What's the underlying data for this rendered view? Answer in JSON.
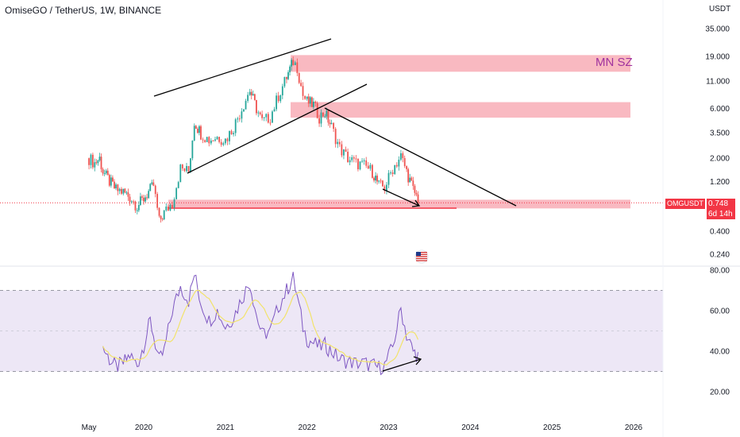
{
  "header": {
    "title": "OmiseGO / TetherUS, 1W, BINANCE",
    "unit": "USDT"
  },
  "zones": {
    "mn_sz_label": "MN SZ"
  },
  "price_tag": {
    "symbol": "OMGUSDT",
    "price": "0.748",
    "countdown": "6d 14h"
  },
  "colors": {
    "up": "#26a69a",
    "down": "#ef5350",
    "zone": "#f7a1ac",
    "rsi": "#7e57c2",
    "rsi_ma": "#f2e36b",
    "rsi_band": "#ede7f6"
  },
  "chart_data": [
    {
      "type": "candlestick",
      "scale": "log",
      "ylim": [
        0.2,
        40
      ],
      "y_ticks": [
        "35.000",
        "19.000",
        "11.000",
        "6.000",
        "3.500",
        "2.000",
        "1.200",
        "0.400",
        "0.240"
      ],
      "x_ticks": [
        "May",
        "2020",
        "2021",
        "2022",
        "2023",
        "2024",
        "2025",
        "2026"
      ],
      "series": [
        {
          "name": "OMGUSDT",
          "values": [
            [
              2019.33,
              2.0
            ],
            [
              2019.4,
              1.8
            ],
            [
              2019.46,
              2.0
            ],
            [
              2019.5,
              1.5
            ],
            [
              2019.58,
              1.2
            ],
            [
              2019.66,
              1.0
            ],
            [
              2019.75,
              0.95
            ],
            [
              2019.83,
              0.85
            ],
            [
              2019.92,
              0.7
            ],
            [
              2020.0,
              0.82
            ],
            [
              2020.08,
              1.0
            ],
            [
              2020.12,
              1.1
            ],
            [
              2020.19,
              0.5
            ],
            [
              2020.25,
              0.6
            ],
            [
              2020.35,
              0.75
            ],
            [
              2020.45,
              1.6
            ],
            [
              2020.55,
              1.5
            ],
            [
              2020.62,
              4.5
            ],
            [
              2020.7,
              3.5
            ],
            [
              2020.8,
              3.0
            ],
            [
              2020.9,
              3.2
            ],
            [
              2021.0,
              3.0
            ],
            [
              2021.1,
              4.0
            ],
            [
              2021.2,
              6.0
            ],
            [
              2021.3,
              9.0
            ],
            [
              2021.38,
              6.0
            ],
            [
              2021.45,
              4.5
            ],
            [
              2021.55,
              5.0
            ],
            [
              2021.65,
              8.0
            ],
            [
              2021.75,
              12.0
            ],
            [
              2021.83,
              17.0
            ],
            [
              2021.88,
              15.0
            ],
            [
              2021.95,
              8.0
            ],
            [
              2022.0,
              7.0
            ],
            [
              2022.08,
              6.5
            ],
            [
              2022.15,
              5.0
            ],
            [
              2022.22,
              5.5
            ],
            [
              2022.3,
              4.0
            ],
            [
              2022.4,
              2.5
            ],
            [
              2022.5,
              2.0
            ],
            [
              2022.6,
              1.8
            ],
            [
              2022.7,
              1.7
            ],
            [
              2022.8,
              1.5
            ],
            [
              2022.88,
              1.1
            ],
            [
              2022.95,
              1.05
            ],
            [
              2023.05,
              1.6
            ],
            [
              2023.15,
              2.1
            ],
            [
              2023.22,
              1.5
            ],
            [
              2023.3,
              1.0
            ],
            [
              2023.38,
              0.75
            ]
          ]
        }
      ],
      "zones": [
        {
          "from": 13.5,
          "to": 19.5,
          "label": "MN SZ"
        },
        {
          "from": 4.9,
          "to": 6.9,
          "label": ""
        },
        {
          "from": 0.66,
          "to": 0.8,
          "label": ""
        }
      ],
      "last_price": 0.748
    },
    {
      "type": "line",
      "ylim": [
        20,
        80
      ],
      "y_ticks": [
        "80.00",
        "60.00",
        "40.00",
        "20.00"
      ],
      "band": [
        30,
        70
      ],
      "series": [
        {
          "name": "",
          "values": [
            [
              2019.5,
              42
            ],
            [
              2019.58,
              36
            ],
            [
              2019.66,
              32
            ],
            [
              2019.75,
              34
            ],
            [
              2019.83,
              38
            ],
            [
              2019.92,
              33
            ],
            [
              2020.0,
              43
            ],
            [
              2020.08,
              55
            ],
            [
              2020.12,
              48
            ],
            [
              2020.19,
              35
            ],
            [
              2020.25,
              40
            ],
            [
              2020.35,
              60
            ],
            [
              2020.45,
              72
            ],
            [
              2020.55,
              65
            ],
            [
              2020.62,
              78
            ],
            [
              2020.7,
              64
            ],
            [
              2020.8,
              55
            ],
            [
              2020.9,
              60
            ],
            [
              2021.0,
              52
            ],
            [
              2021.1,
              57
            ],
            [
              2021.2,
              66
            ],
            [
              2021.3,
              74
            ],
            [
              2021.38,
              58
            ],
            [
              2021.45,
              48
            ],
            [
              2021.55,
              50
            ],
            [
              2021.65,
              62
            ],
            [
              2021.75,
              70
            ],
            [
              2021.83,
              76
            ],
            [
              2021.88,
              67
            ],
            [
              2021.95,
              52
            ],
            [
              2022.0,
              46
            ],
            [
              2022.08,
              44
            ],
            [
              2022.15,
              42
            ],
            [
              2022.22,
              43
            ],
            [
              2022.3,
              40
            ],
            [
              2022.4,
              36
            ],
            [
              2022.5,
              35
            ],
            [
              2022.6,
              34
            ],
            [
              2022.7,
              34
            ],
            [
              2022.8,
              33
            ],
            [
              2022.88,
              32
            ],
            [
              2022.95,
              33
            ],
            [
              2023.05,
              42
            ],
            [
              2023.15,
              61
            ],
            [
              2023.22,
              48
            ],
            [
              2023.3,
              40
            ],
            [
              2023.38,
              37
            ]
          ]
        }
      ]
    }
  ]
}
